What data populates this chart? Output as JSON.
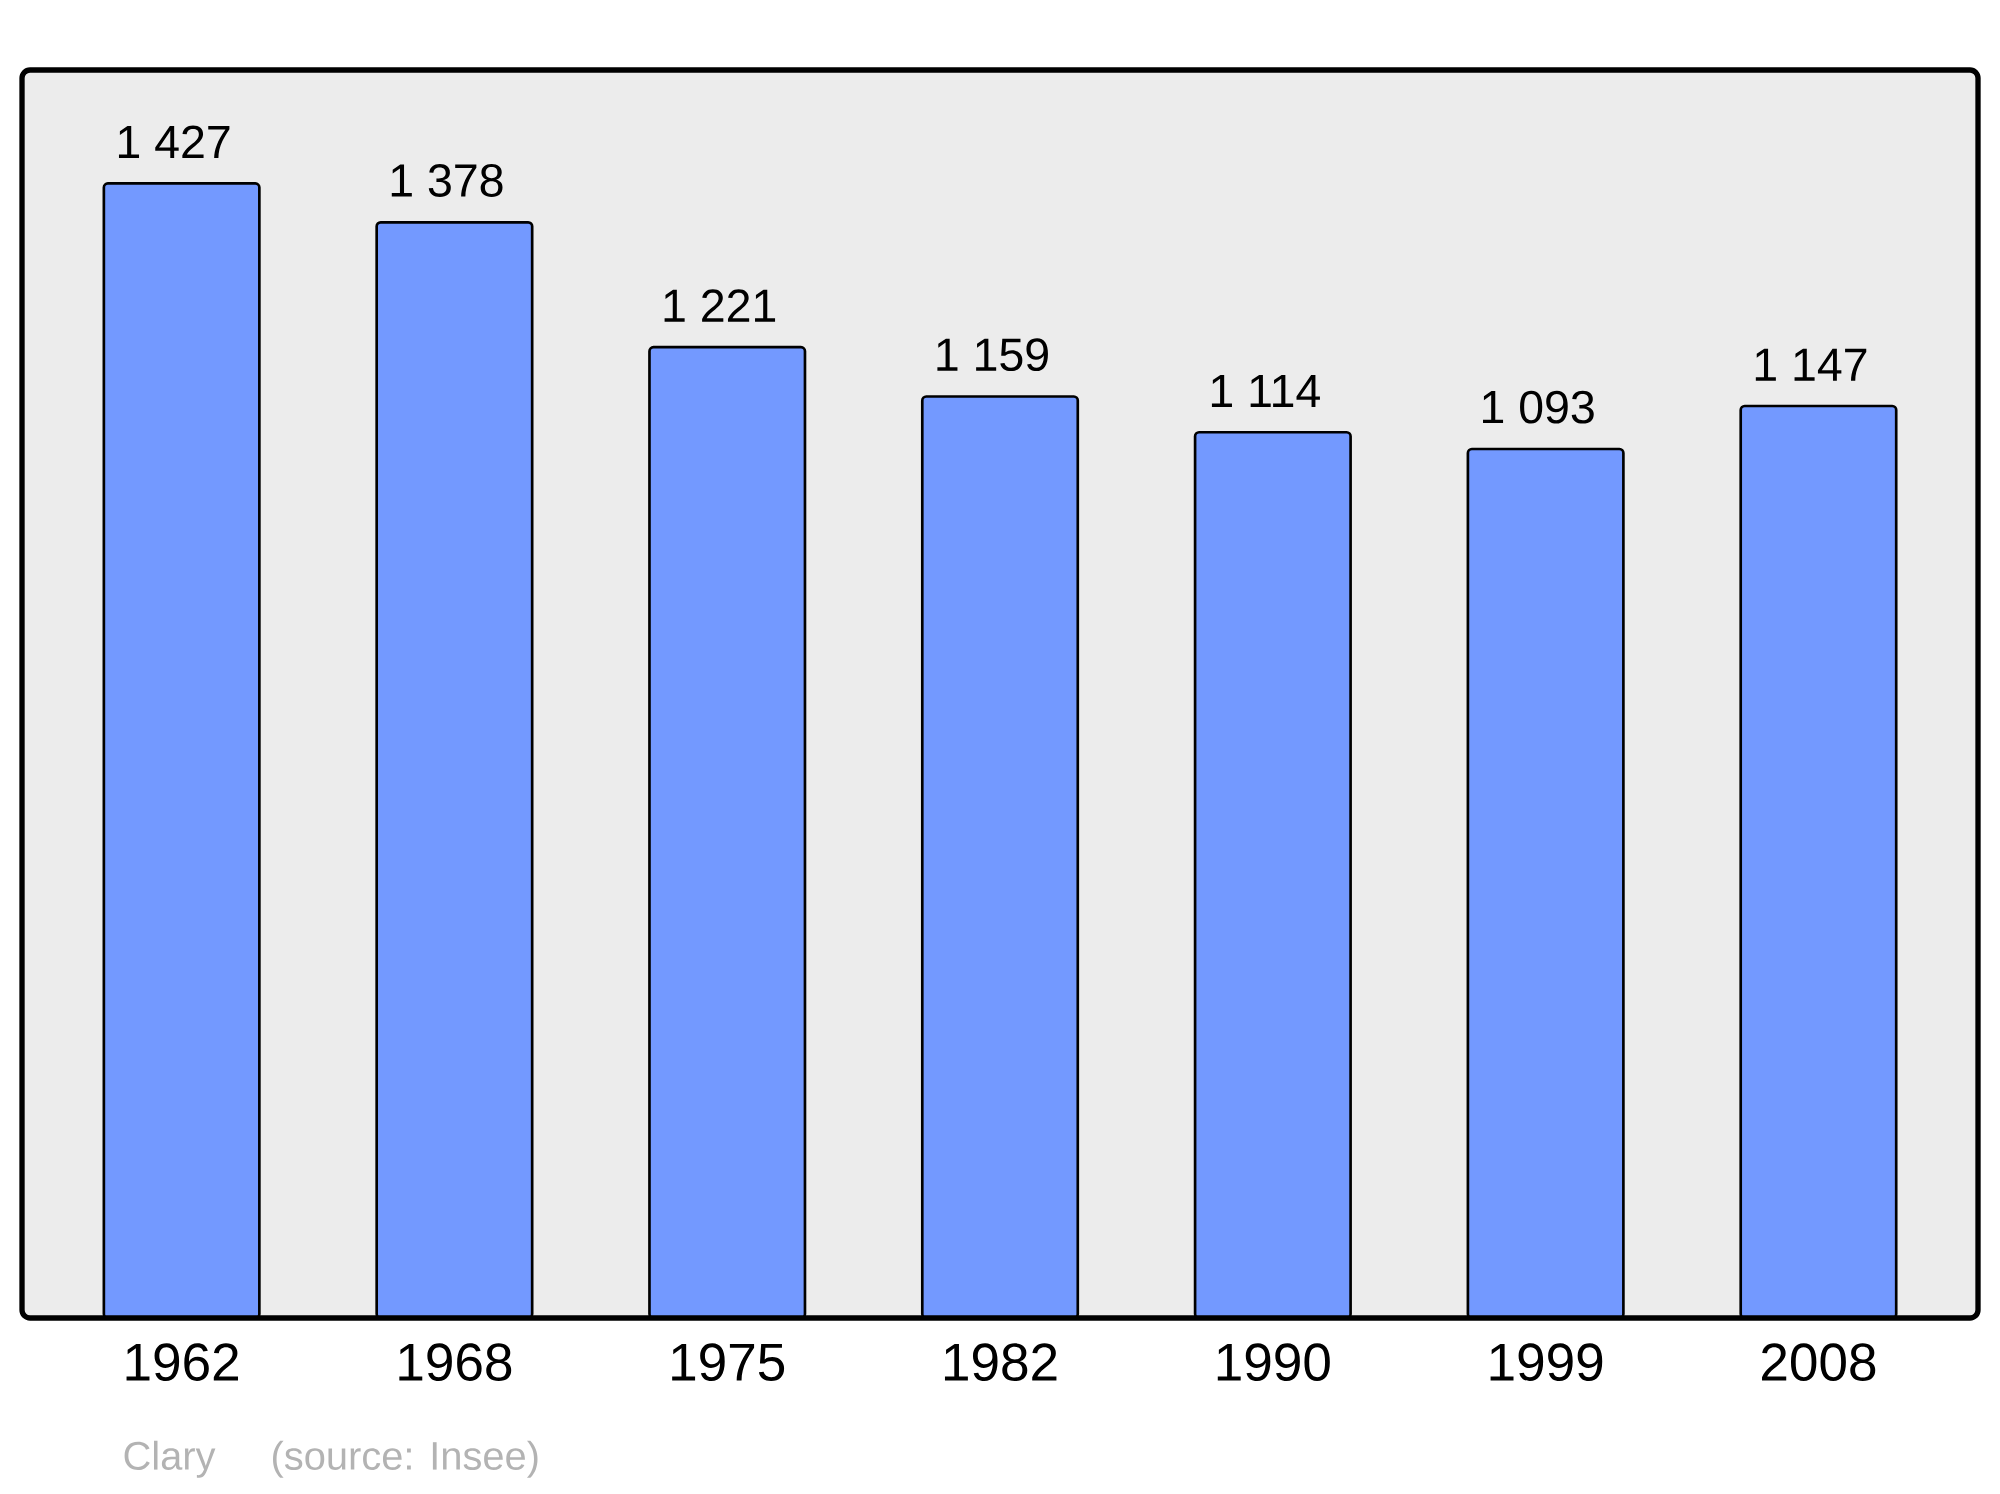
{
  "chart_data": {
    "type": "bar",
    "categories": [
      "1962",
      "1968",
      "1975",
      "1982",
      "1990",
      "1999",
      "2008"
    ],
    "values": [
      1427,
      1378,
      1221,
      1159,
      1114,
      1093,
      1147
    ],
    "value_labels": [
      "1 427",
      "1 378",
      "1 221",
      "1 159",
      "1 114",
      "1 093",
      "1 147"
    ],
    "color": "#7399ff",
    "annotations": [
      "Clary",
      "(source: Insee)"
    ]
  }
}
